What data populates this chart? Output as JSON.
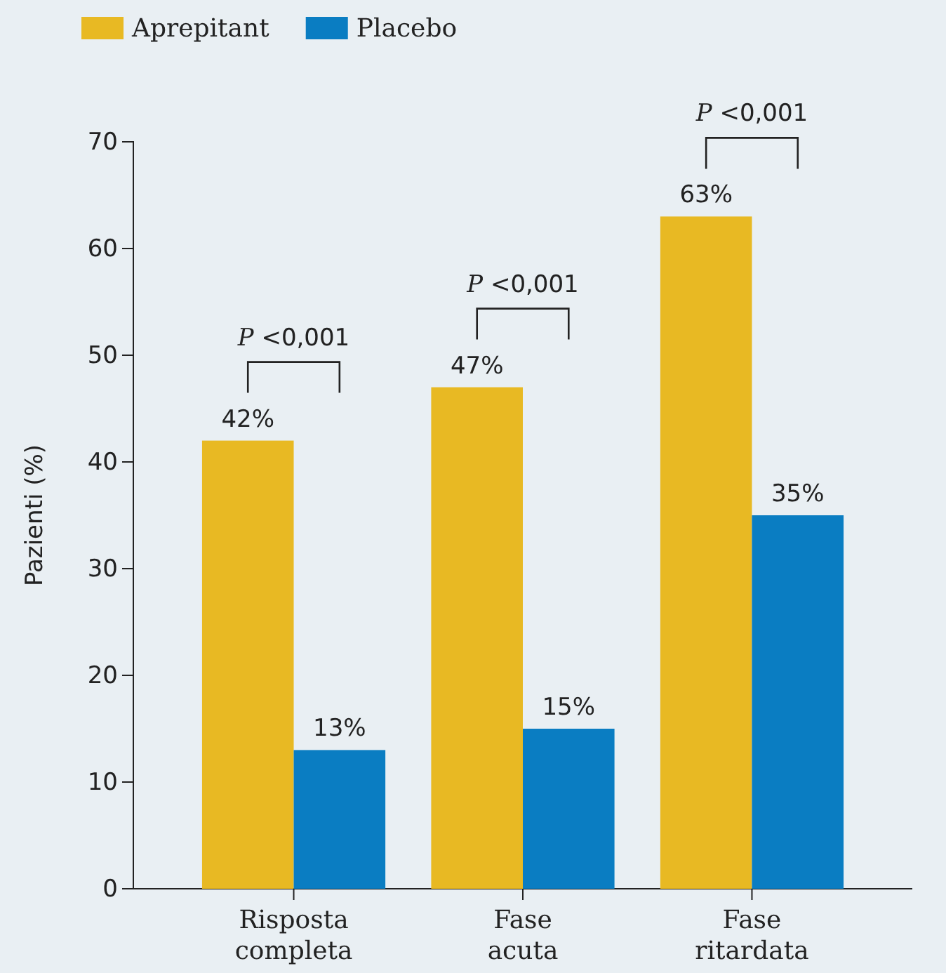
{
  "chart_data": {
    "type": "bar",
    "ylabel": "Pazienti (%)",
    "categories": [
      "Risposta completa",
      "Fase acuta",
      "Fase ritardata"
    ],
    "series": [
      {
        "name": "Aprepitant",
        "color": "#e8b923",
        "values": [
          42,
          47,
          63
        ],
        "value_labels": [
          "42%",
          "47%",
          "63%"
        ]
      },
      {
        "name": "Placebo",
        "color": "#0a7dc2",
        "values": [
          13,
          15,
          35
        ],
        "value_labels": [
          "13%",
          "15%",
          "35%"
        ]
      }
    ],
    "ylim": [
      0,
      70
    ],
    "yticks": [
      0,
      10,
      20,
      30,
      40,
      50,
      60,
      70
    ],
    "grid": false,
    "legend": "top left",
    "annotations": [
      "P <0,001",
      "P <0,001",
      "P <0,001"
    ]
  }
}
